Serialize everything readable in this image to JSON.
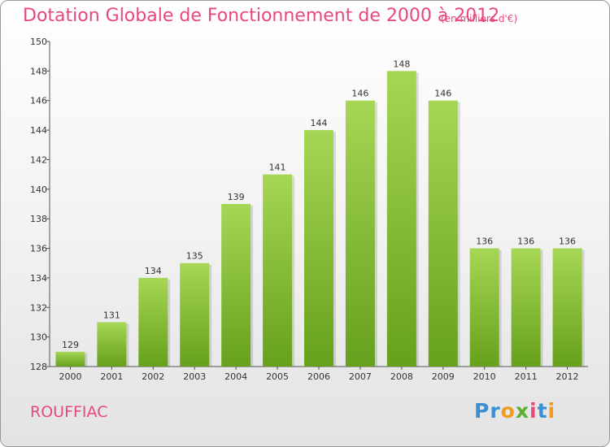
{
  "title": "Dotation Globale de Fonctionnement de 2000 à 2012",
  "subtitle": "(en milliers d'€)",
  "city": "ROUFFIAC",
  "logo": {
    "text": "Proxiti",
    "letters": [
      {
        "char": "P",
        "color": "#3a8fd6"
      },
      {
        "char": "r",
        "color": "#3a8fd6"
      },
      {
        "char": "o",
        "color": "#f29a1b"
      },
      {
        "char": "x",
        "color": "#5cae2e"
      },
      {
        "char": "i",
        "color": "#e8487a"
      },
      {
        "char": "t",
        "color": "#3a8fd6"
      },
      {
        "char": "i",
        "color": "#f29a1b"
      }
    ]
  },
  "colors": {
    "accent": "#e8487a",
    "bar_light": "#9fd14e",
    "bar_dark": "#6ba321",
    "axis": "#555555",
    "grid": "#d0d0d0"
  },
  "chart_data": {
    "type": "bar",
    "title": "Dotation Globale de Fonctionnement de 2000 à 2012",
    "subtitle": "(en milliers d'€)",
    "xlabel": "",
    "ylabel": "",
    "categories": [
      "2000",
      "2001",
      "2002",
      "2003",
      "2004",
      "2005",
      "2006",
      "2007",
      "2008",
      "2009",
      "2010",
      "2011",
      "2012"
    ],
    "values": [
      129,
      131,
      134,
      135,
      139,
      141,
      144,
      146,
      148,
      146,
      136,
      136,
      136
    ],
    "ylim": [
      128,
      150
    ],
    "yticks": [
      128,
      130,
      132,
      134,
      136,
      138,
      140,
      142,
      144,
      146,
      148,
      150
    ],
    "grid": false,
    "legend": "none"
  }
}
